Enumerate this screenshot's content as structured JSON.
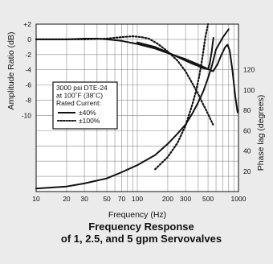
{
  "colors": {
    "background": "#ebebeb",
    "plot_bg": "#ffffff",
    "ink": "#111111",
    "grid": "#8c8c8c"
  },
  "chart_data": {
    "type": "line",
    "title_lines": [
      "Frequency Response",
      "of 1, 2.5, and 5 gpm Servovalves"
    ],
    "xlabel": "Frequency (Hz)",
    "ylabel_left": "Amplitude Ratio (dB)",
    "ylabel_right": "Phase lag (degrees)",
    "x_scale": "log",
    "xlim": [
      10,
      1000
    ],
    "x_ticks": [
      {
        "v": 10,
        "label": "10"
      },
      {
        "v": 20,
        "label": "20"
      },
      {
        "v": 30,
        "label": "30"
      },
      {
        "v": 50,
        "label": "50"
      },
      {
        "v": 70,
        "label": "70"
      },
      {
        "v": 100,
        "label": "100"
      },
      {
        "v": 200,
        "label": "200"
      },
      {
        "v": 300,
        "label": "300"
      },
      {
        "v": 500,
        "label": "500"
      },
      {
        "v": 1000,
        "label": "1000"
      }
    ],
    "x_grid": [
      10,
      20,
      30,
      40,
      50,
      60,
      70,
      80,
      90,
      100,
      200,
      300,
      400,
      500,
      600,
      700,
      800,
      900,
      1000
    ],
    "y_left_ticks": [
      {
        "v": 2,
        "label": "+2"
      },
      {
        "v": 0,
        "label": "0"
      },
      {
        "v": -2,
        "label": "-2"
      },
      {
        "v": -4,
        "label": "-4"
      },
      {
        "v": -6,
        "label": "-6"
      },
      {
        "v": -8,
        "label": "-8"
      },
      {
        "v": -10,
        "label": "-10"
      }
    ],
    "y_right_ticks": [
      {
        "v": 20,
        "label": "20"
      },
      {
        "v": 40,
        "label": "40"
      },
      {
        "v": 60,
        "label": "60"
      },
      {
        "v": 80,
        "label": "80"
      },
      {
        "v": 100,
        "label": "100"
      },
      {
        "v": 120,
        "label": "120"
      }
    ],
    "ylim_left": [
      -20,
      2
    ],
    "ylim_right": [
      0,
      165
    ],
    "legend": {
      "lines": [
        "3000 psi DTE-24",
        "at 100˚F (38˚C)",
        "Rated Current:"
      ],
      "entries": [
        {
          "label": "±40%",
          "style": "solid"
        },
        {
          "label": "±100%",
          "style": "dotted"
        }
      ]
    },
    "series": [
      {
        "style": "solid",
        "axis": "left",
        "points": [
          [
            10,
            0
          ],
          [
            20,
            0
          ],
          [
            30,
            0.1
          ],
          [
            40,
            0.1
          ],
          [
            50,
            0
          ],
          [
            70,
            -0.2
          ],
          [
            100,
            -0.6
          ],
          [
            150,
            -1.2
          ],
          [
            200,
            -1.8
          ],
          [
            300,
            -2.6
          ],
          [
            400,
            -3.3
          ],
          [
            500,
            -3.9
          ],
          [
            560,
            -4.2
          ],
          [
            620,
            -3.3
          ],
          [
            680,
            -2.0
          ],
          [
            740,
            -1.0
          ],
          [
            780,
            -0.7
          ],
          [
            820,
            -1.5
          ],
          [
            870,
            -4.0
          ],
          [
            930,
            -7.5
          ],
          [
            980,
            -9.6
          ]
        ]
      },
      {
        "style": "solid",
        "axis": "left",
        "points": [
          [
            100,
            -0.4
          ],
          [
            150,
            -1.0
          ],
          [
            200,
            -1.7
          ],
          [
            250,
            -2.3
          ],
          [
            300,
            -2.8
          ],
          [
            350,
            -3.2
          ],
          [
            400,
            -3.5
          ],
          [
            450,
            -3.8
          ],
          [
            500,
            -3.9
          ],
          [
            520,
            -3.2
          ],
          [
            545,
            -1.5
          ],
          [
            565,
            0.2
          ]
        ]
      },
      {
        "style": "dotted",
        "axis": "left",
        "points": [
          [
            10,
            0
          ],
          [
            30,
            0
          ],
          [
            50,
            0.1
          ],
          [
            70,
            0.3
          ],
          [
            90,
            0.4
          ],
          [
            110,
            0.3
          ],
          [
            130,
            0.1
          ],
          [
            160,
            -0.6
          ],
          [
            200,
            -1.6
          ],
          [
            250,
            -2.8
          ],
          [
            300,
            -4.2
          ],
          [
            350,
            -5.8
          ],
          [
            400,
            -7.2
          ],
          [
            450,
            -8.6
          ],
          [
            500,
            -9.8
          ],
          [
            560,
            -11.2
          ]
        ]
      },
      {
        "style": "solid",
        "axis": "right",
        "points": [
          [
            10,
            3
          ],
          [
            20,
            5
          ],
          [
            30,
            8
          ],
          [
            50,
            13
          ],
          [
            70,
            19
          ],
          [
            100,
            26
          ],
          [
            150,
            36
          ],
          [
            200,
            47
          ],
          [
            250,
            57
          ],
          [
            300,
            66
          ],
          [
            350,
            77
          ],
          [
            400,
            88
          ],
          [
            450,
            99
          ],
          [
            500,
            112
          ],
          [
            550,
            125
          ],
          [
            600,
            140
          ],
          [
            700,
            152
          ],
          [
            800,
            160
          ]
        ]
      },
      {
        "style": "dotted",
        "axis": "right",
        "points": [
          [
            150,
            22
          ],
          [
            200,
            34
          ],
          [
            250,
            48
          ],
          [
            300,
            65
          ],
          [
            350,
            86
          ],
          [
            380,
            99
          ],
          [
            410,
            114
          ],
          [
            440,
            132
          ],
          [
            470,
            152
          ],
          [
            500,
            165
          ]
        ]
      }
    ]
  }
}
